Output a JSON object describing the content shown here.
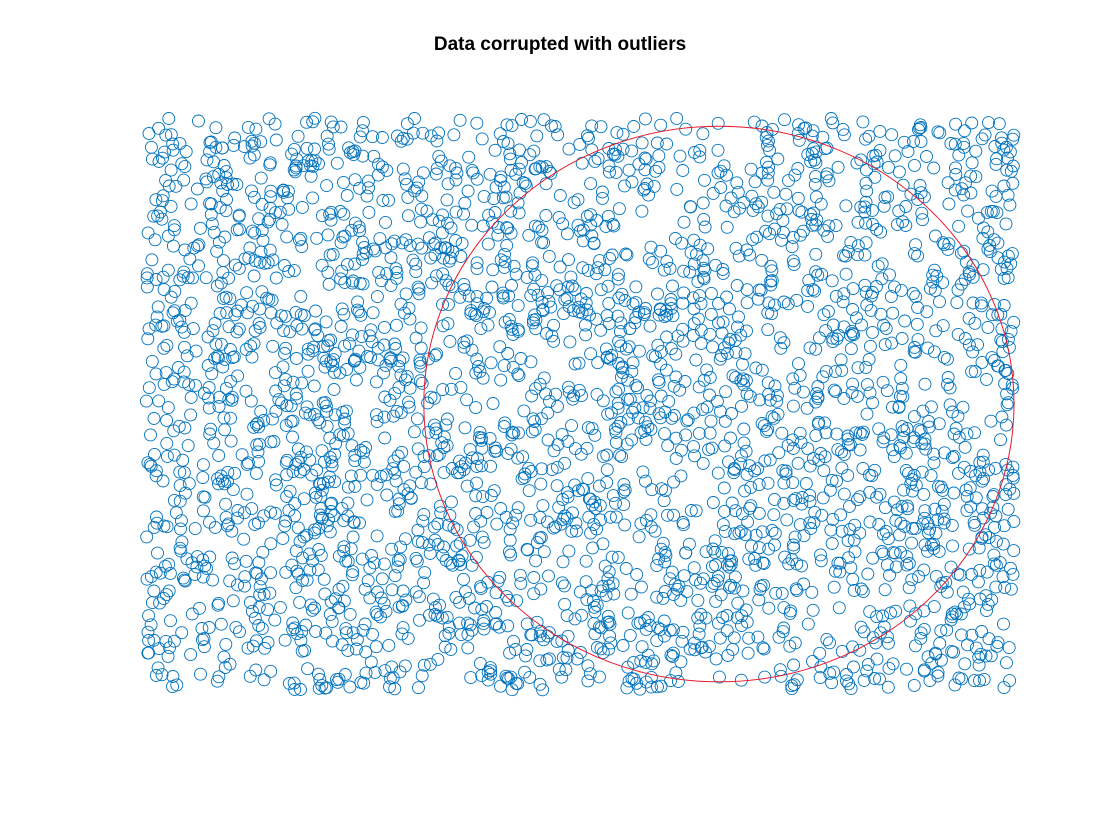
{
  "chart_data": {
    "type": "scatter",
    "title": "Data corrupted with outliers",
    "xlabel": "",
    "ylabel": "",
    "xlim": [
      0,
      100
    ],
    "ylim": [
      0,
      70
    ],
    "grid": false,
    "axes_visible": false,
    "marker": "circle-open",
    "point_count": 3000,
    "point_distribution": "approximately uniform over the plot area",
    "series": [
      {
        "type": "scatter",
        "color": "#0072BD"
      },
      {
        "type": "circle",
        "color": "#E8192C",
        "center": [
          66,
          35
        ],
        "radius": 34
      }
    ]
  }
}
